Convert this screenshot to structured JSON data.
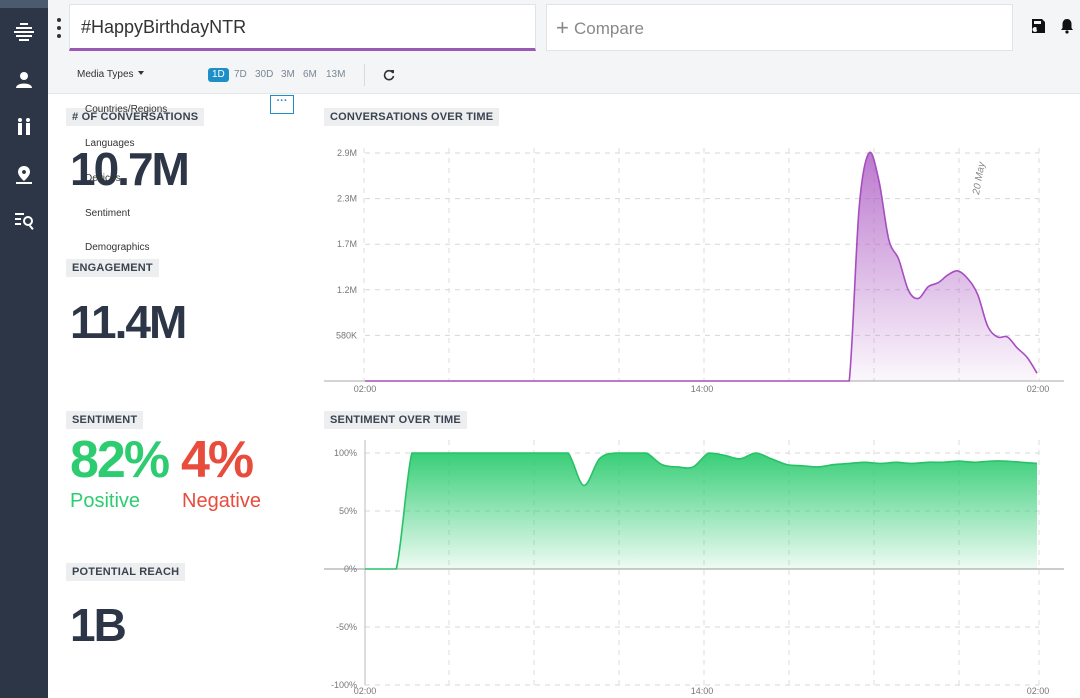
{
  "search": {
    "query": "#HappyBirthdayNTR",
    "compare_label": "Compare"
  },
  "filters": {
    "media_types_label": "Media Types",
    "ranges": [
      "1D",
      "7D",
      "30D",
      "3M",
      "6M",
      "13M"
    ],
    "active_range": "1D"
  },
  "dropdown_items": [
    "Countries/Regions",
    "Languages",
    "Devices",
    "Sentiment",
    "Demographics"
  ],
  "more_label": "···",
  "stats": {
    "conversations_label": "# OF CONVERSATIONS",
    "conversations_value": "10.7M",
    "engagement_label": "ENGAGEMENT",
    "engagement_value": "11.4M",
    "sentiment_label": "SENTIMENT",
    "positive_value": "82%",
    "positive_label": "Positive",
    "negative_value": "4%",
    "negative_label": "Negative",
    "reach_label": "POTENTIAL REACH",
    "reach_value": "1B"
  },
  "colors": {
    "accent": "#9b59b6",
    "positive": "#2ecc71",
    "negative": "#e74c3c",
    "sidebar": "#2c3646",
    "active": "#1d8fc7"
  },
  "sidebar_icons": [
    "logo-icon",
    "users-icon",
    "people-icon",
    "location-icon",
    "search-list-icon"
  ],
  "chart_data": [
    {
      "type": "area",
      "title": "CONVERSATIONS OVER TIME",
      "x_ticks": [
        "02:00",
        "14:00",
        "02:00"
      ],
      "y_ticks": [
        "580K",
        "1.2M",
        "1.7M",
        "2.3M",
        "2.9M"
      ],
      "annotation": "20 May",
      "ylim": [
        0,
        2900000
      ],
      "series": [
        {
          "values": [
            0,
            0,
            0,
            0,
            0,
            0,
            0,
            0,
            0,
            0,
            0,
            0,
            0,
            0,
            0,
            0,
            0,
            0,
            0,
            0,
            0,
            0,
            0,
            0,
            0,
            0,
            0,
            0,
            0,
            0,
            0,
            0,
            0,
            0,
            0,
            0,
            0,
            0,
            0,
            0,
            0,
            0,
            0,
            0,
            0,
            0,
            0,
            0,
            0,
            0,
            2200000,
            2900000,
            2550000,
            1800000,
            1550000,
            1150000,
            1050000,
            1200000,
            1250000,
            1350000,
            1400000,
            1300000,
            1100000,
            700000,
            560000,
            560000,
            420000,
            300000,
            100000
          ]
        }
      ],
      "x_range": [
        0,
        68
      ]
    },
    {
      "type": "area",
      "title": "SENTIMENT OVER TIME",
      "x_ticks": [
        "02:00",
        "14:00",
        "02:00"
      ],
      "y_ticks": [
        "100%",
        "50%",
        "0%",
        "-50%",
        "-100%"
      ],
      "ylim": [
        -100,
        100
      ],
      "series": [
        {
          "values": [
            0,
            0,
            0,
            100,
            100,
            100,
            100,
            100,
            100,
            100,
            100,
            100,
            100,
            100,
            72,
            95,
            100,
            100,
            100,
            90,
            88,
            88,
            100,
            98,
            95,
            100,
            95,
            90,
            89,
            88,
            90,
            91,
            92,
            91,
            92,
            91,
            92,
            92,
            93,
            92,
            93,
            93,
            92,
            91
          ]
        }
      ],
      "x_range": [
        0,
        43
      ]
    }
  ]
}
